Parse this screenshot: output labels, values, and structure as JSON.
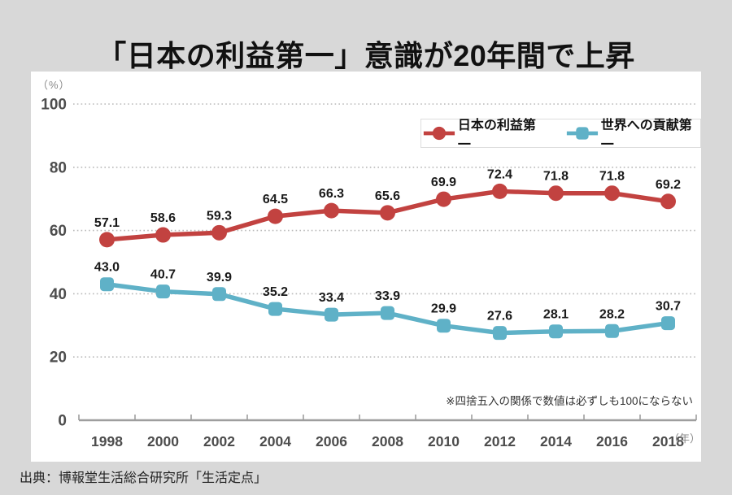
{
  "title": "「日本の利益第一」意識が20年間で上昇",
  "source": "出典：博報堂生活総合研究所「生活定点」",
  "chart_data": {
    "type": "line",
    "categories": [
      "1998",
      "2000",
      "2002",
      "2004",
      "2006",
      "2008",
      "2010",
      "2012",
      "2014",
      "2016",
      "2018"
    ],
    "x_axis_unit_label": "（年）",
    "y_axis_unit_label": "（%）",
    "ylim": [
      0,
      100
    ],
    "y_ticks": [
      0,
      20,
      40,
      60,
      80,
      100
    ],
    "grid": "dotted horizontal gridlines at each y tick, solid baseline at 0",
    "legend_position": "top-right inside plot, boxed",
    "series": [
      {
        "name": "日本の利益第一",
        "color": "#c24240",
        "marker": "circle",
        "values": [
          57.1,
          58.6,
          59.3,
          64.5,
          66.3,
          65.6,
          69.9,
          72.4,
          71.8,
          71.8,
          69.2
        ]
      },
      {
        "name": "世界への貢献第一",
        "color": "#5fb1c7",
        "marker": "square",
        "values": [
          43.0,
          40.7,
          39.9,
          35.2,
          33.4,
          33.9,
          29.9,
          27.6,
          28.1,
          28.2,
          30.7
        ]
      }
    ],
    "footnote": "※四捨五入の関係で数値は必ずしも100にならない"
  }
}
